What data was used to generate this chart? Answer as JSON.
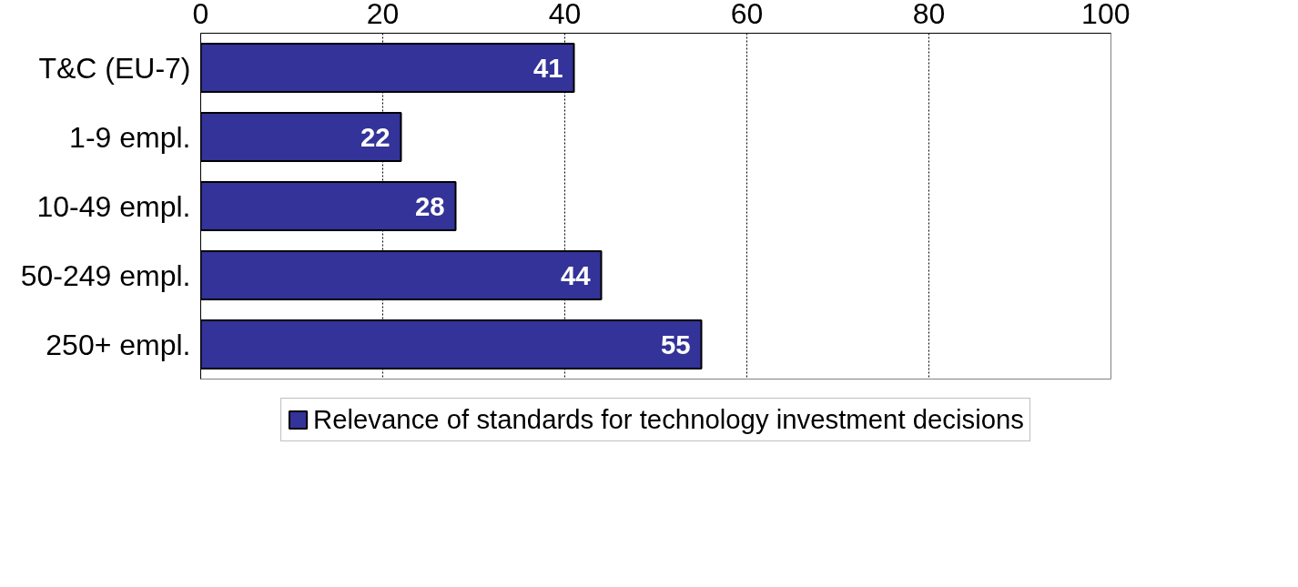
{
  "chart_data": {
    "type": "bar",
    "orientation": "horizontal",
    "categories": [
      "T&C (EU-7)",
      "1-9 empl.",
      "10-49 empl.",
      "50-249 empl.",
      "250+ empl."
    ],
    "series": [
      {
        "name": "Relevance of standards for technology investment decisions",
        "color": "#333399",
        "values": [
          41,
          22,
          28,
          44,
          55
        ]
      }
    ],
    "xlim": [
      0,
      100
    ],
    "xticks": [
      0,
      20,
      40,
      60,
      80,
      100
    ],
    "grid": "x",
    "data_labels": true,
    "legend": "bottom"
  }
}
